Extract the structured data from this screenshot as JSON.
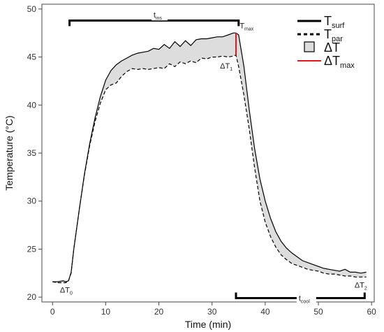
{
  "chart_data": {
    "type": "line",
    "xlabel": "Time (min)",
    "ylabel": "Temperature (°C)",
    "xlim": [
      -2,
      60.5
    ],
    "ylim": [
      19.5,
      50.5
    ],
    "x_ticks": [
      0,
      10,
      20,
      30,
      40,
      50,
      60
    ],
    "y_ticks": [
      20,
      25,
      30,
      35,
      40,
      45,
      50
    ],
    "grid": false,
    "legend_position": "top-right",
    "series": [
      {
        "name": "T_surf",
        "style": "solid",
        "x": [
          0,
          1,
          2,
          2.5,
          3,
          3.5,
          4,
          5,
          6,
          7,
          8,
          9,
          10,
          11,
          12,
          13,
          14,
          15,
          16,
          17,
          18,
          19,
          20,
          21,
          22,
          23,
          24,
          25,
          26,
          27,
          28,
          29,
          30,
          31,
          32,
          33,
          34,
          34.5,
          35,
          36,
          37,
          38,
          39,
          40,
          41,
          42,
          43,
          44,
          45,
          46,
          47,
          48,
          49,
          50,
          51,
          52,
          53,
          54,
          55,
          56,
          57,
          58,
          59
        ],
        "values": [
          21.6,
          21.6,
          21.7,
          21.6,
          21.7,
          22.6,
          25,
          29,
          32.8,
          36,
          38.7,
          40.9,
          42.6,
          43.6,
          44.2,
          44.6,
          44.9,
          45.2,
          45.4,
          45.5,
          45.6,
          45.9,
          45.8,
          46.3,
          45.9,
          46.6,
          46.1,
          46.7,
          46.2,
          46.8,
          46.9,
          46.9,
          47.0,
          47.1,
          47.1,
          47.3,
          47.5,
          47.5,
          47.3,
          44.0,
          39.5,
          35.5,
          32.3,
          30.0,
          28.2,
          26.8,
          25.8,
          25.1,
          24.6,
          24.2,
          23.8,
          23.6,
          23.4,
          23.2,
          23.0,
          22.9,
          22.8,
          22.7,
          22.9,
          22.6,
          22.6,
          22.5,
          22.6
        ]
      },
      {
        "name": "T_par",
        "style": "dashed",
        "x": [
          0,
          1,
          2,
          2.5,
          3,
          3.5,
          4,
          5,
          6,
          7,
          8,
          9,
          10,
          11,
          12,
          13,
          14,
          15,
          16,
          17,
          18,
          19,
          20,
          21,
          22,
          23,
          24,
          25,
          26,
          27,
          28,
          29,
          30,
          31,
          32,
          33,
          34,
          34.5,
          35,
          36,
          37,
          38,
          39,
          40,
          41,
          42,
          43,
          44,
          45,
          46,
          47,
          48,
          49,
          50,
          51,
          52,
          53,
          54,
          55,
          56,
          57,
          58,
          59
        ],
        "values": [
          21.6,
          21.5,
          21.5,
          21.5,
          21.7,
          22.5,
          25,
          29,
          32.7,
          35.8,
          38.3,
          40.2,
          41.6,
          42.1,
          42.3,
          43.0,
          43.5,
          43.8,
          43.7,
          43.8,
          43.7,
          43.8,
          43.9,
          43.8,
          44.3,
          44.0,
          44.5,
          44.3,
          44.6,
          44.4,
          44.9,
          44.8,
          45.0,
          45.0,
          45.1,
          45.0,
          45.1,
          45.2,
          44.0,
          41.0,
          37.5,
          33.5,
          30.0,
          27.8,
          26.3,
          25.2,
          24.4,
          23.9,
          23.5,
          23.3,
          23.1,
          22.9,
          22.8,
          22.7,
          22.5,
          22.4,
          22.4,
          22.3,
          22.2,
          22.2,
          22.1,
          22.1,
          22.1
        ]
      }
    ],
    "delta_t_max": {
      "x": 34.5,
      "y_top": 47.5,
      "y_bottom": 45.2
    },
    "brackets": [
      {
        "name": "t_ins",
        "x_start": 3.2,
        "x_end": 35.0,
        "y": 48.8,
        "direction": "down"
      },
      {
        "name": "t_cool",
        "x_start": 34.5,
        "x_end": 58.7,
        "y": 19.9,
        "direction": "up"
      }
    ],
    "annotations": [
      {
        "id": "t_ins",
        "main": "t",
        "sub": "ins",
        "x": 19,
        "y": 49.1
      },
      {
        "id": "t_cool",
        "main": "t",
        "sub": "cool",
        "x": 46.3,
        "y": 19.6
      },
      {
        "id": "T_max",
        "main": "T",
        "sub": "max",
        "x": 35.2,
        "y": 48.0
      },
      {
        "id": "dT1",
        "main": "ΔT",
        "sub": "1",
        "x": 31.5,
        "y": 43.8
      },
      {
        "id": "dT0",
        "main": "ΔT",
        "sub": "0",
        "x": 1.4,
        "y": 20.5
      },
      {
        "id": "dT2",
        "main": "ΔT",
        "sub": "2",
        "x": 56.8,
        "y": 21.0
      }
    ],
    "legend": [
      {
        "id": "surf",
        "main": "T",
        "sub": "surf",
        "kind": "solid-line"
      },
      {
        "id": "par",
        "main": "T",
        "sub": "par",
        "kind": "dashed-line"
      },
      {
        "id": "dt",
        "main": "ΔT",
        "sub": "",
        "kind": "fill-box"
      },
      {
        "id": "dtmax",
        "main": "ΔT",
        "sub": "max",
        "kind": "red-line"
      }
    ],
    "colors": {
      "surf": "#000000",
      "par": "#000000",
      "fill": "#dddddd",
      "max": "#e0191b",
      "axis": "#444444"
    }
  }
}
